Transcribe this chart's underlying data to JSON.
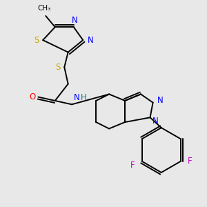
{
  "background_color": "#e8e8e8",
  "bond_color": "#000000",
  "colors": {
    "N": "#0000ff",
    "S": "#ccaa00",
    "O": "#ff0000",
    "F": "#cc00cc",
    "H": "#008080",
    "C": "#000000"
  },
  "figsize": [
    3.0,
    3.0
  ],
  "dpi": 100
}
